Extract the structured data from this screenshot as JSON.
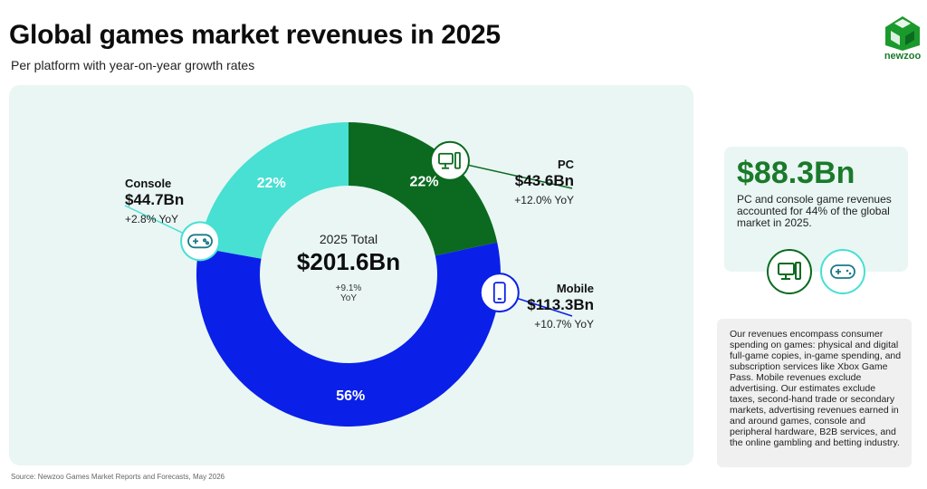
{
  "header": {
    "title": "Global games market revenues in 2025",
    "subtitle": "Per platform with year-on-year growth rates",
    "brand": "newzoo"
  },
  "colors": {
    "pc": "#0b6a1f",
    "console": "#47e0d2",
    "mobile": "#0a20e8",
    "accent": "#1a7a2a",
    "panel_bg": "#e9f6f4"
  },
  "chart_data": {
    "type": "pie",
    "title": "Global games market revenues in 2025",
    "categories": [
      "PC",
      "Mobile",
      "Console"
    ],
    "values": [
      43.6,
      113.3,
      44.7
    ],
    "percent_labels": [
      "22%",
      "56%",
      "22%"
    ],
    "value_labels": [
      "$43.6Bn",
      "$113.3Bn",
      "$44.7Bn"
    ],
    "yoy_labels": [
      "+12.0% YoY",
      "+10.7% YoY",
      "+2.8% YoY"
    ],
    "icons": [
      "pc-icon",
      "mobile-phone-icon",
      "gamepad-icon"
    ],
    "center": {
      "title": "2025 Total",
      "value": "$201.6Bn",
      "growth": "+9.1%",
      "growth_unit": "YoY"
    }
  },
  "kpi": {
    "value": "$88.3Bn",
    "description": "PC and console game revenues accounted for 44% of the global market in 2025.",
    "icons": [
      "pc-icon",
      "gamepad-icon"
    ]
  },
  "note": {
    "text": "Our revenues encompass consumer spending on games: physical and digital full-game copies, in-game spending, and subscription services like Xbox Game Pass. Mobile revenues exclude advertising. Our estimates exclude taxes, second-hand trade or secondary markets, advertising revenues earned in and around games, console and peripheral hardware, B2B services, and the online gambling and betting industry."
  },
  "source": "Source: Newzoo Games Market Reports and Forecasts, May 2026"
}
